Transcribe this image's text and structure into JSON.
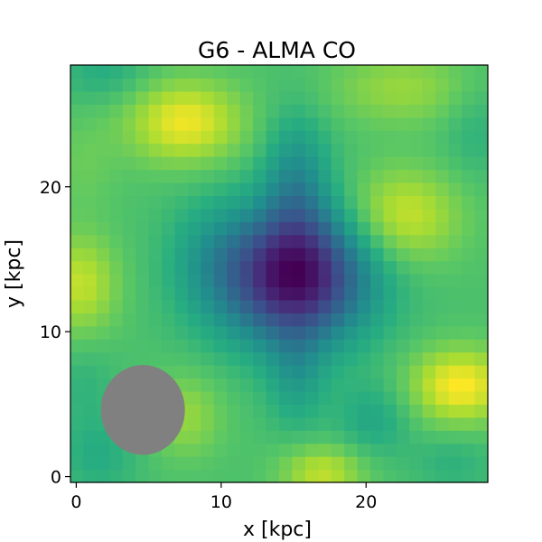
{
  "chart_data": {
    "type": "heatmap",
    "title": "G6 - ALMA CO",
    "xlabel": "x [kpc]",
    "ylabel": "y [kpc]",
    "xlim": [
      -0.4,
      28.4
    ],
    "ylim": [
      -0.4,
      28.4
    ],
    "xticks": [
      0,
      10,
      20
    ],
    "yticks": [
      0,
      10,
      20
    ],
    "xtick_labels": [
      "0",
      "10",
      "20"
    ],
    "ytick_labels": [
      "0",
      "10",
      "20"
    ],
    "colormap": "viridis",
    "grid": false,
    "pixel_size": 0.9,
    "field": {
      "baseline": 0.72,
      "components": [
        {
          "x": 15.0,
          "y": 13.9,
          "sigma_x": 3.6,
          "sigma_y": 3.2,
          "amp": -0.62,
          "label": "central decrement"
        },
        {
          "x": 15.2,
          "y": 20.5,
          "sigma_x": 1.6,
          "sigma_y": 3.2,
          "amp": -0.18,
          "label": "northern ridge"
        },
        {
          "x": 15.2,
          "y": 7.0,
          "sigma_x": 1.4,
          "sigma_y": 2.6,
          "amp": -0.12,
          "label": "southern ridge"
        },
        {
          "x": 9.0,
          "y": 15.0,
          "sigma_x": 2.0,
          "sigma_y": 2.8,
          "amp": -0.08,
          "label": "western extension"
        },
        {
          "x": 7.5,
          "y": 24.5,
          "sigma_x": 2.8,
          "sigma_y": 2.0,
          "amp": 0.24,
          "label": "NW peak"
        },
        {
          "x": 22.5,
          "y": 18.0,
          "sigma_x": 2.8,
          "sigma_y": 2.3,
          "amp": 0.2,
          "label": "NE peak"
        },
        {
          "x": 26.5,
          "y": 6.3,
          "sigma_x": 2.4,
          "sigma_y": 1.8,
          "amp": 0.26,
          "label": "E peak"
        },
        {
          "x": 0.3,
          "y": 13.3,
          "sigma_x": 1.8,
          "sigma_y": 2.4,
          "amp": 0.18,
          "label": "W edge peak"
        },
        {
          "x": 7.5,
          "y": 4.2,
          "sigma_x": 1.8,
          "sigma_y": 2.0,
          "amp": 0.12,
          "label": "SW peak"
        },
        {
          "x": 17.0,
          "y": 0.3,
          "sigma_x": 2.0,
          "sigma_y": 1.3,
          "amp": 0.18,
          "label": "S edge peak"
        },
        {
          "x": 22.5,
          "y": 26.8,
          "sigma_x": 3.5,
          "sigma_y": 1.8,
          "amp": 0.12,
          "label": "N edge peak"
        },
        {
          "x": 0.5,
          "y": 21.5,
          "sigma_x": 1.6,
          "sigma_y": 2.4,
          "amp": 0.05,
          "label": "W upper"
        },
        {
          "x": 2.0,
          "y": 28.0,
          "sigma_x": 2.2,
          "sigma_y": 1.6,
          "amp": -0.08,
          "label": "NW corner dip"
        },
        {
          "x": 0.5,
          "y": 6.5,
          "sigma_x": 1.6,
          "sigma_y": 2.0,
          "amp": -0.05,
          "label": "W lower dip"
        },
        {
          "x": 27.5,
          "y": 24.0,
          "sigma_x": 1.6,
          "sigma_y": 2.4,
          "amp": -0.06,
          "label": "E upper dip"
        },
        {
          "x": 20.5,
          "y": 4.0,
          "sigma_x": 1.8,
          "sigma_y": 1.8,
          "amp": -0.1,
          "label": "SE dip"
        },
        {
          "x": 26.0,
          "y": 1.0,
          "sigma_x": 2.0,
          "sigma_y": 1.4,
          "amp": -0.06,
          "label": "SE corner dip"
        },
        {
          "x": 1.5,
          "y": 1.5,
          "sigma_x": 2.0,
          "sigma_y": 2.0,
          "amp": -0.08,
          "label": "SW corner dip"
        }
      ]
    },
    "beam": {
      "x": 4.6,
      "y": 4.6,
      "width": 5.8,
      "height": 6.2,
      "color": "#808080"
    }
  }
}
